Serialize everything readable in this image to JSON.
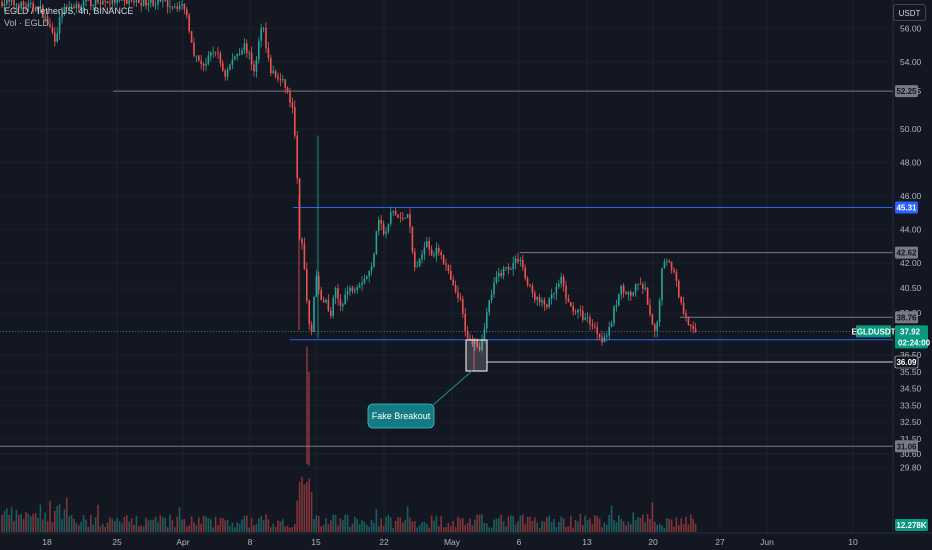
{
  "header": {
    "title": "EGLD / TetherUS, 4h, BINANCE",
    "volume_label": "Vol · EGLD"
  },
  "currency_button": "USDT",
  "annotation": {
    "text": "Fake Breakout"
  },
  "colors": {
    "background": "#131722",
    "up": "#26a69a",
    "down": "#ef5350",
    "blue_line": "#2962ff",
    "gray_line": "#787b86",
    "annotation": "#127b83"
  },
  "chart_data": {
    "type": "candlestick",
    "x_tick_labels": [
      "18",
      "25",
      "Apr",
      "8",
      "15",
      "22",
      "May",
      "6",
      "13",
      "20",
      "27",
      "Jun",
      "10"
    ],
    "y_tick_labels": [
      "56.00",
      "54.00",
      "52.25",
      "50.00",
      "48.00",
      "46.00",
      "44.00",
      "42.00",
      "40.50",
      "39.00",
      "37.92",
      "36.50",
      "35.50",
      "34.50",
      "33.50",
      "32.50",
      "31.50",
      "30.60",
      "29.80"
    ],
    "ylim": [
      29.3,
      57.6
    ],
    "levels": [
      {
        "price_label": "52.25",
        "color": "gray"
      },
      {
        "price_label": "45.31",
        "color": "blue"
      },
      {
        "price_label": "42.62",
        "color": "gray"
      },
      {
        "price_label": "38.76",
        "color": "gray"
      },
      {
        "price_label": "37.42",
        "color": "blue"
      },
      {
        "price_label": "36.09",
        "color": "black"
      },
      {
        "price_label": "31.06",
        "color": "gray"
      }
    ],
    "current": {
      "symbol": "EGLDUSDT",
      "price": "37.92",
      "countdown": "02:24:00"
    },
    "volume_label": "12.278K",
    "path_points": [
      [
        0,
        57.6
      ],
      [
        40,
        57.2
      ],
      [
        55,
        55.4
      ],
      [
        62,
        57.0
      ],
      [
        75,
        57.4
      ],
      [
        100,
        57.6
      ],
      [
        150,
        57.6
      ],
      [
        185,
        57.3
      ],
      [
        195,
        54.3
      ],
      [
        205,
        53.8
      ],
      [
        215,
        54.8
      ],
      [
        225,
        53.2
      ],
      [
        235,
        54.4
      ],
      [
        245,
        55.0
      ],
      [
        255,
        53.4
      ],
      [
        262,
        56.6
      ],
      [
        270,
        53.5
      ],
      [
        278,
        53.0
      ],
      [
        285,
        52.6
      ],
      [
        292,
        51.3
      ],
      [
        296,
        49.2
      ],
      [
        299,
        43.4
      ],
      [
        303,
        43.0
      ],
      [
        307,
        39.6
      ],
      [
        311,
        37.6
      ],
      [
        316,
        41.6
      ],
      [
        320,
        39.6
      ],
      [
        325,
        40.0
      ],
      [
        330,
        38.6
      ],
      [
        335,
        40.4
      ],
      [
        340,
        39.4
      ],
      [
        346,
        40.2
      ],
      [
        352,
        40.5
      ],
      [
        358,
        40.8
      ],
      [
        365,
        41.1
      ],
      [
        372,
        41.7
      ],
      [
        378,
        44.9
      ],
      [
        385,
        43.5
      ],
      [
        392,
        45.2
      ],
      [
        400,
        44.5
      ],
      [
        408,
        45.1
      ],
      [
        414,
        41.7
      ],
      [
        420,
        42.0
      ],
      [
        426,
        43.6
      ],
      [
        432,
        42.5
      ],
      [
        440,
        42.8
      ],
      [
        448,
        41.4
      ],
      [
        455,
        40.2
      ],
      [
        460,
        39.8
      ],
      [
        465,
        38.1
      ],
      [
        470,
        37.3
      ],
      [
        475,
        37.5
      ],
      [
        480,
        36.9
      ],
      [
        484,
        38.2
      ],
      [
        490,
        39.9
      ],
      [
        497,
        41.2
      ],
      [
        504,
        41.6
      ],
      [
        512,
        41.9
      ],
      [
        520,
        42.4
      ],
      [
        526,
        40.9
      ],
      [
        532,
        40.2
      ],
      [
        540,
        39.6
      ],
      [
        548,
        39.5
      ],
      [
        556,
        40.4
      ],
      [
        562,
        41.0
      ],
      [
        568,
        39.5
      ],
      [
        575,
        39.2
      ],
      [
        583,
        38.8
      ],
      [
        590,
        38.5
      ],
      [
        596,
        38.0
      ],
      [
        602,
        37.5
      ],
      [
        609,
        37.9
      ],
      [
        615,
        39.4
      ],
      [
        622,
        40.6
      ],
      [
        630,
        40.0
      ],
      [
        638,
        40.7
      ],
      [
        645,
        40.4
      ],
      [
        651,
        38.4
      ],
      [
        656,
        37.6
      ],
      [
        662,
        41.6
      ],
      [
        668,
        42.4
      ],
      [
        675,
        41.2
      ],
      [
        681,
        39.5
      ],
      [
        687,
        38.8
      ],
      [
        692,
        37.9
      ],
      [
        697,
        37.9
      ]
    ]
  }
}
